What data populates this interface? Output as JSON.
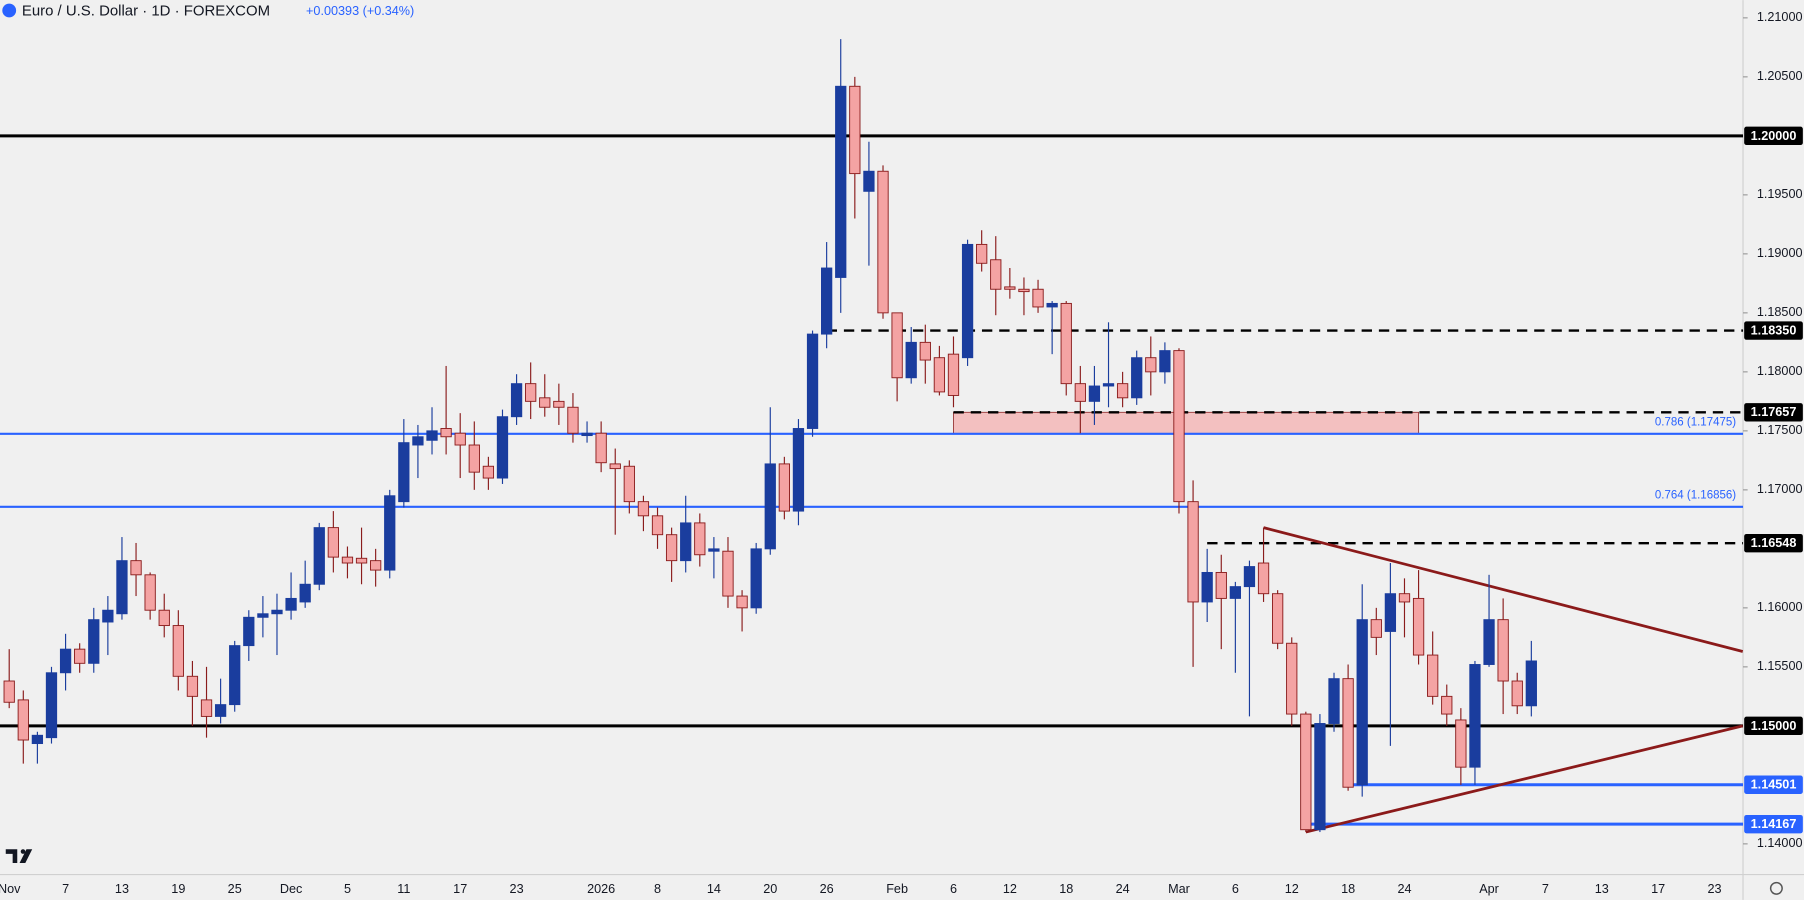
{
  "chart_data": {
    "type": "candlestick",
    "title": "Euro / U.S. Dollar · 1D · FOREXCOM",
    "change": "+0.00393 (+0.34%)",
    "categories": [
      "Nov",
      null,
      null,
      null,
      "7",
      null,
      null,
      null,
      "13",
      null,
      null,
      null,
      "19",
      null,
      null,
      null,
      "25",
      null,
      null,
      null,
      "Dec",
      null,
      null,
      null,
      "5",
      null,
      null,
      null,
      "11",
      null,
      null,
      null,
      "17",
      null,
      null,
      null,
      "23",
      null,
      null,
      null,
      null,
      null,
      "2026",
      null,
      null,
      null,
      "8",
      null,
      null,
      null,
      "14",
      null,
      null,
      null,
      "20",
      null,
      null,
      null,
      "26",
      null,
      null,
      null,
      null,
      "Feb",
      null,
      null,
      null,
      "6",
      null,
      null,
      null,
      "12",
      null,
      null,
      null,
      "18",
      null,
      null,
      null,
      "24",
      null,
      null,
      null,
      "Mar",
      null,
      null,
      null,
      "6",
      null,
      null,
      null,
      "12",
      null,
      null,
      null,
      "18",
      null,
      null,
      null,
      "24",
      null,
      null,
      null,
      null,
      null,
      "Apr",
      null,
      null,
      null,
      "7",
      null,
      null,
      null,
      "13",
      null,
      null,
      null,
      "17",
      null,
      null,
      null,
      "23",
      null,
      null
    ],
    "open": [
      1.1538,
      1.1522,
      1.1485,
      1.149,
      1.1545,
      1.1565,
      1.1553,
      1.1588,
      1.1595,
      1.164,
      1.1628,
      1.1598,
      1.1585,
      1.1542,
      1.1522,
      1.1508,
      1.1518,
      1.1568,
      1.1592,
      1.1595,
      1.1598,
      1.1605,
      1.162,
      1.1668,
      1.1643,
      1.1642,
      1.164,
      1.1632,
      1.169,
      1.1738,
      1.1742,
      1.1752,
      1.1748,
      1.1738,
      1.172,
      1.171,
      1.1762,
      1.179,
      1.1778,
      1.1775,
      1.177,
      1.1746,
      1.1748,
      1.1722,
      1.172,
      1.169,
      1.1678,
      1.1662,
      1.164,
      1.1672,
      1.1648,
      1.1648,
      1.161,
      1.16,
      1.165,
      1.1722,
      1.1682,
      1.1752,
      1.1832,
      1.188,
      1.2042,
      1.1953,
      1.197,
      1.185,
      1.1795,
      1.1825,
      1.1812,
      1.1815,
      1.1812,
      1.1908,
      1.1895,
      1.1872,
      1.187,
      1.187,
      1.1855,
      1.1858,
      1.179,
      1.1775,
      1.1788,
      1.179,
      1.1778,
      1.1812,
      1.18,
      1.1818,
      1.169,
      1.1605,
      1.163,
      1.1608,
      1.1618,
      1.1638,
      1.1612,
      1.157,
      1.151,
      1.1412,
      1.1502,
      1.154,
      1.145,
      1.159,
      1.158,
      1.1612,
      1.1608,
      1.156,
      1.1525,
      1.1505,
      1.1465,
      1.1552,
      1.159,
      1.1538,
      1.1517,
      null,
      null,
      null,
      null,
      null,
      null,
      null,
      null,
      null,
      null,
      null,
      null,
      null,
      null,
      null
    ],
    "high": [
      1.1565,
      1.153,
      1.1495,
      1.155,
      1.1578,
      1.157,
      1.16,
      1.161,
      1.166,
      1.1655,
      1.163,
      1.1612,
      1.1598,
      1.1555,
      1.155,
      1.154,
      1.1572,
      1.1598,
      1.161,
      1.1612,
      1.163,
      1.164,
      1.1672,
      1.1682,
      1.1652,
      1.1668,
      1.165,
      1.17,
      1.176,
      1.1755,
      1.177,
      1.1805,
      1.1765,
      1.1758,
      1.1728,
      1.1768,
      1.1798,
      1.1808,
      1.1798,
      1.179,
      1.1782,
      1.1758,
      1.1758,
      1.1735,
      1.1725,
      1.1695,
      1.1685,
      1.1668,
      1.1695,
      1.168,
      1.166,
      1.166,
      1.1615,
      1.1655,
      1.177,
      1.1728,
      1.176,
      1.1835,
      1.191,
      1.2082,
      1.205,
      1.1995,
      1.1975,
      1.185,
      1.1838,
      1.184,
      1.1822,
      1.183,
      1.1912,
      1.192,
      1.1915,
      1.1888,
      1.188,
      1.1878,
      1.186,
      1.186,
      1.1805,
      1.1805,
      1.1842,
      1.18,
      1.1818,
      1.183,
      1.1825,
      1.182,
      1.1708,
      1.165,
      1.1645,
      1.1622,
      1.164,
      1.1668,
      1.1615,
      1.1575,
      1.1512,
      1.151,
      1.1545,
      1.1552,
      1.162,
      1.16,
      1.1638,
      1.1625,
      1.1632,
      1.158,
      1.1535,
      1.1515,
      1.1555,
      1.1628,
      1.1608,
      1.1545,
      1.1572,
      null,
      null,
      null,
      null,
      null,
      null,
      null,
      null,
      null,
      null,
      null,
      null,
      null,
      null,
      null
    ],
    "low": [
      1.1515,
      1.1468,
      1.1468,
      1.1485,
      1.153,
      1.1545,
      1.1545,
      1.156,
      1.159,
      1.161,
      1.159,
      1.1575,
      1.153,
      1.15,
      1.149,
      1.1502,
      1.1512,
      1.1555,
      1.1575,
      1.156,
      1.159,
      1.16,
      1.1615,
      1.163,
      1.1625,
      1.162,
      1.1618,
      1.1625,
      1.1685,
      1.171,
      1.173,
      1.173,
      1.171,
      1.17,
      1.17,
      1.1705,
      1.1755,
      1.176,
      1.1762,
      1.1755,
      1.174,
      1.174,
      1.1715,
      1.1662,
      1.168,
      1.1665,
      1.165,
      1.1622,
      1.163,
      1.1635,
      1.1625,
      1.16,
      1.158,
      1.1595,
      1.1645,
      1.1675,
      1.167,
      1.1745,
      1.182,
      1.185,
      1.193,
      1.189,
      1.1845,
      1.1775,
      1.179,
      1.179,
      1.178,
      1.177,
      1.1805,
      1.1885,
      1.1848,
      1.1862,
      1.1848,
      1.185,
      1.1815,
      1.178,
      1.1748,
      1.1755,
      1.177,
      1.177,
      1.1772,
      1.178,
      1.179,
      1.168,
      1.155,
      1.1588,
      1.1565,
      1.1545,
      1.1508,
      1.1605,
      1.1565,
      1.15,
      1.141,
      1.141,
      1.1495,
      1.1445,
      1.144,
      1.156,
      1.1483,
      1.1575,
      1.1552,
      1.1518,
      1.15,
      1.145,
      1.145,
      1.155,
      1.151,
      1.151,
      1.1508,
      null,
      null,
      null,
      null,
      null,
      null,
      null,
      null,
      null,
      null,
      null,
      null,
      null,
      null,
      null
    ],
    "close": [
      1.152,
      1.1488,
      1.1492,
      1.1545,
      1.1565,
      1.1553,
      1.159,
      1.1598,
      1.164,
      1.1628,
      1.1598,
      1.1585,
      1.1542,
      1.1525,
      1.1508,
      1.1518,
      1.1568,
      1.1592,
      1.1595,
      1.1598,
      1.1608,
      1.162,
      1.1668,
      1.1643,
      1.1638,
      1.1638,
      1.1632,
      1.1695,
      1.174,
      1.1745,
      1.175,
      1.1745,
      1.1738,
      1.1715,
      1.171,
      1.1762,
      1.179,
      1.1775,
      1.177,
      1.177,
      1.1748,
      1.1748,
      1.1723,
      1.1718,
      1.169,
      1.1678,
      1.1662,
      1.164,
      1.1672,
      1.1645,
      1.165,
      1.161,
      1.16,
      1.165,
      1.1722,
      1.1682,
      1.1752,
      1.1832,
      1.1888,
      1.2042,
      1.1968,
      1.197,
      1.185,
      1.1795,
      1.1825,
      1.181,
      1.1783,
      1.178,
      1.1908,
      1.1892,
      1.187,
      1.187,
      1.1868,
      1.1855,
      1.1858,
      1.179,
      1.1775,
      1.1788,
      1.179,
      1.1778,
      1.1812,
      1.18,
      1.1818,
      1.169,
      1.1605,
      1.163,
      1.1608,
      1.1618,
      1.1635,
      1.1612,
      1.157,
      1.151,
      1.1412,
      1.1502,
      1.154,
      1.1448,
      1.159,
      1.1575,
      1.1612,
      1.1605,
      1.156,
      1.1525,
      1.151,
      1.1465,
      1.1552,
      1.159,
      1.1538,
      1.1517,
      1.1555,
      null,
      null,
      null,
      null,
      null,
      null,
      null,
      null,
      null,
      null,
      null,
      null,
      null,
      null,
      null
    ],
    "up_color": "#1a3d9e",
    "down_color": "#f4a3a3",
    "down_border": "#8a1c1c",
    "ylim": [
      1.1374,
      1.2115
    ],
    "yticks": [
      {
        "value": 1.14,
        "label": "1.14000"
      },
      {
        "value": 1.155,
        "label": "1.15500"
      },
      {
        "value": 1.16,
        "label": "1.16000"
      },
      {
        "value": 1.17,
        "label": "1.17000"
      },
      {
        "value": 1.175,
        "label": "1.17500"
      },
      {
        "value": 1.18,
        "label": "1.18000"
      },
      {
        "value": 1.185,
        "label": "1.18500"
      },
      {
        "value": 1.19,
        "label": "1.19000"
      },
      {
        "value": 1.195,
        "label": "1.19500"
      },
      {
        "value": 1.205,
        "label": "1.20500"
      },
      {
        "value": 1.21,
        "label": "1.21000"
      }
    ],
    "levels": [
      {
        "value": 1.2,
        "label": "1.20000",
        "color": "#000000",
        "style": "solid"
      },
      {
        "value": 1.1835,
        "label": "1.18350",
        "color": "#000000",
        "style": "dashed",
        "x_start": 58
      },
      {
        "value": 1.17657,
        "label": "1.17657",
        "color": "#000000",
        "style": "dashed",
        "x_start": 67
      },
      {
        "value": 1.16548,
        "label": "1.16548",
        "color": "#000000",
        "style": "dashed",
        "x_start": 85
      },
      {
        "value": 1.15,
        "label": "1.15000",
        "color": "#000000",
        "style": "solid"
      },
      {
        "value": 1.14501,
        "label": "1.14501",
        "color": "#2962ff",
        "style": "solid",
        "x_start": 95
      },
      {
        "value": 1.14167,
        "label": "1.14167",
        "color": "#2962ff",
        "style": "solid",
        "x_start": 92
      }
    ],
    "fib_levels": [
      {
        "value": 1.17475,
        "label": "0.786 (1.17475)",
        "color": "#2962ff"
      },
      {
        "value": 1.16856,
        "label": "0.764 (1.16856)",
        "color": "#2962ff"
      }
    ],
    "zone": {
      "low": 1.17475,
      "high": 1.17657,
      "x": [
        67,
        100
      ],
      "color": "#f4b8b8"
    },
    "trendlines": [
      {
        "x": [
          89,
          123
        ],
        "values": [
          1.1668,
          1.1563
        ],
        "color": "#8b1a1a"
      },
      {
        "x": [
          92,
          123
        ],
        "values": [
          1.141,
          1.15
        ],
        "color": "#8b1a1a"
      }
    ]
  }
}
